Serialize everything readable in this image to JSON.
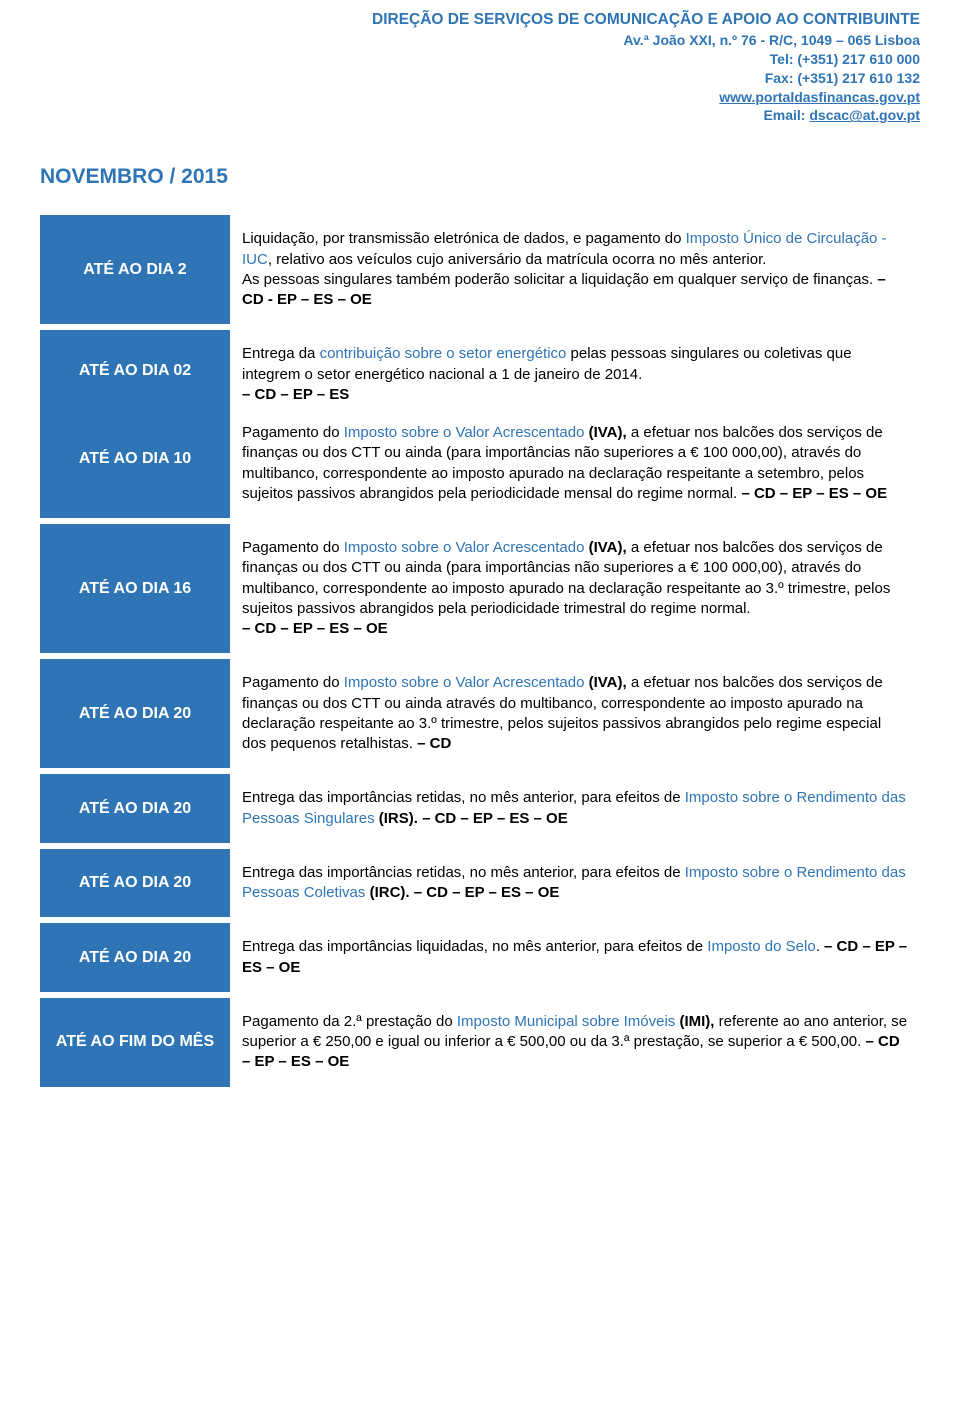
{
  "colors": {
    "primary_blue": "#2f75b5",
    "highlight_blue": "#2f75b5",
    "text_black": "#000000"
  },
  "header": {
    "title": "DIREÇÃO DE SERVIÇOS DE COMUNICAÇÃO E APOIO AO CONTRIBUINTE",
    "address": "Av.ª João XXI, n.º 76 - R/C, 1049 – 065 Lisboa",
    "tel": "Tel: (+351) 217 610 000",
    "fax": "Fax: (+351) 217 610 132",
    "url": "www.portaldasfinancas.gov.pt",
    "email_label": "Email: ",
    "email": "dscac@at.gov.pt"
  },
  "month_title": "NOVEMBRO / 2015",
  "rows": [
    {
      "date": "ATÉ AO DIA 2",
      "blocks": [
        {
          "parts": [
            {
              "t": "Liquidação, por transmissão eletrónica de dados, e pagamento do "
            },
            {
              "t": "Imposto Único de Circulação - IUC",
              "hl": true
            },
            {
              "t": ", relativo aos veículos cujo aniversário da matrícula ocorra no mês anterior."
            },
            {
              "br": true
            },
            {
              "t": "As pessoas singulares também poderão solicitar a liquidação em qualquer serviço de finanças. "
            },
            {
              "t": "– CD - EP – ES – OE",
              "bold": true
            }
          ]
        }
      ]
    },
    {
      "date": "ATÉ AO DIA 02",
      "date2": "ATÉ AO DIA 10",
      "two_dates": true,
      "blocks": [
        {
          "parts": [
            {
              "t": "Entrega da "
            },
            {
              "t": "contribuição sobre o setor energético",
              "hl": true
            },
            {
              "t": " pelas pessoas singulares ou coletivas que integrem o setor energético nacional a 1 de janeiro de 2014."
            },
            {
              "br": true
            },
            {
              "t": "– CD – EP – ES",
              "bold": true
            }
          ]
        },
        {
          "parts": [
            {
              "t": "Pagamento do "
            },
            {
              "t": "Imposto sobre o Valor Acrescentado",
              "hl": true
            },
            {
              "t": " "
            },
            {
              "t": "(IVA),",
              "bold": true
            },
            {
              "t": " a efetuar nos balcões dos serviços de finanças ou dos CTT ou ainda (para importâncias não superiores a € 100 000,00), através do multibanco, correspondente ao imposto apurado na declaração respeitante a setembro, pelos sujeitos passivos abrangidos pela periodicidade mensal do regime normal. "
            },
            {
              "t": "– CD – EP – ES – OE",
              "bold": true
            }
          ]
        }
      ]
    },
    {
      "date": "ATÉ AO DIA 16",
      "blocks": [
        {
          "parts": [
            {
              "t": "Pagamento do "
            },
            {
              "t": "Imposto sobre o Valor Acrescentado",
              "hl": true
            },
            {
              "t": " "
            },
            {
              "t": "(IVA),",
              "bold": true
            },
            {
              "t": " a efetuar nos balcões dos serviços de finanças ou dos CTT ou ainda (para importâncias não superiores a € 100 000,00), através do multibanco, correspondente ao imposto apurado na declaração respeitante ao 3.º trimestre, pelos sujeitos passivos abrangidos pela periodicidade trimestral do regime normal."
            },
            {
              "br": true
            },
            {
              "t": "– CD – EP – ES – OE",
              "bold": true
            }
          ]
        }
      ]
    },
    {
      "date": "ATÉ AO DIA 20",
      "blocks": [
        {
          "parts": [
            {
              "t": "Pagamento do "
            },
            {
              "t": "Imposto sobre o Valor Acrescentado",
              "hl": true
            },
            {
              "t": " "
            },
            {
              "t": "(IVA),",
              "bold": true
            },
            {
              "t": " a efetuar nos balcões dos serviços de finanças ou dos CTT ou ainda através do multibanco, correspondente ao imposto apurado na declaração respeitante ao 3.º trimestre, pelos sujeitos passivos abrangidos pelo regime especial dos pequenos retalhistas. "
            },
            {
              "t": "– CD",
              "bold": true
            }
          ]
        }
      ]
    },
    {
      "date": "ATÉ AO DIA 20",
      "blocks": [
        {
          "parts": [
            {
              "t": "Entrega das importâncias retidas, no mês anterior, para efeitos de "
            },
            {
              "t": "Imposto sobre o Rendimento das Pessoas Singulares",
              "hl": true
            },
            {
              "t": " "
            },
            {
              "t": "(IRS). – CD – EP – ES – OE",
              "bold": true
            }
          ]
        }
      ]
    },
    {
      "date": "ATÉ AO DIA 20",
      "blocks": [
        {
          "parts": [
            {
              "t": "Entrega das importâncias retidas, no mês anterior, para efeitos de "
            },
            {
              "t": "Imposto sobre o Rendimento das Pessoas Coletivas",
              "hl": true
            },
            {
              "t": " "
            },
            {
              "t": "(IRC). – CD – EP – ES – OE",
              "bold": true
            }
          ]
        }
      ]
    },
    {
      "date": "ATÉ AO DIA 20",
      "blocks": [
        {
          "parts": [
            {
              "t": "Entrega das importâncias liquidadas, no mês anterior, para efeitos de "
            },
            {
              "t": "Imposto do Selo",
              "hl": true
            },
            {
              "t": ". "
            },
            {
              "t": "– CD – EP – ES – OE",
              "bold": true
            }
          ]
        }
      ]
    },
    {
      "date": "ATÉ AO FIM DO MÊS",
      "blocks": [
        {
          "parts": [
            {
              "t": "Pagamento da 2.ª prestação do "
            },
            {
              "t": "Imposto Municipal sobre Imóveis",
              "hl": true
            },
            {
              "t": " "
            },
            {
              "t": "(IMI),",
              "bold": true
            },
            {
              "t": " referente ao ano anterior, se superior a € 250,00 e igual ou inferior a € 500,00 ou da 3.ª prestação, se superior a € 500,00. "
            },
            {
              "t": "– CD – EP – ES – OE",
              "bold": true
            }
          ]
        }
      ]
    }
  ]
}
